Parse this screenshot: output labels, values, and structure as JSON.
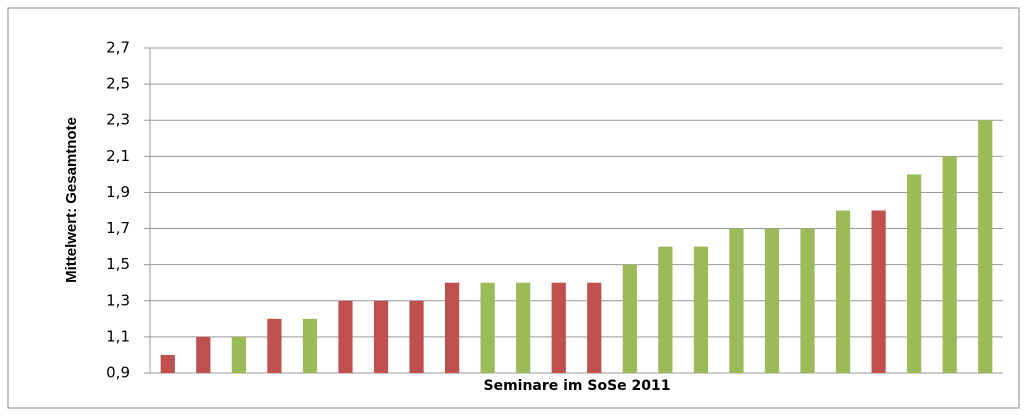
{
  "chart_data": {
    "type": "bar",
    "y_label": "Mittelwert: Gesamtnote",
    "x_label": "Seminare im SoSe 2011",
    "categories": [
      null,
      null,
      null,
      null,
      null,
      null,
      null,
      null,
      null,
      null,
      null,
      null,
      null,
      null,
      null,
      null,
      null,
      null,
      null,
      null,
      null,
      null,
      null,
      null
    ],
    "values": [
      1.0,
      1.1,
      1.1,
      1.2,
      1.2,
      1.3,
      1.3,
      1.3,
      1.4,
      1.4,
      1.4,
      1.4,
      1.4,
      1.5,
      1.6,
      1.6,
      1.7,
      1.7,
      1.7,
      1.8,
      1.8,
      2.0,
      2.1,
      2.3
    ],
    "colors": [
      "#c0504d",
      "#c0504d",
      "#9bbb59",
      "#c0504d",
      "#9bbb59",
      "#c0504d",
      "#c0504d",
      "#c0504d",
      "#c0504d",
      "#9bbb59",
      "#9bbb59",
      "#c0504d",
      "#c0504d",
      "#9bbb59",
      "#9bbb59",
      "#9bbb59",
      "#9bbb59",
      "#9bbb59",
      "#9bbb59",
      "#9bbb59",
      "#c0504d",
      "#9bbb59",
      "#9bbb59",
      "#9bbb59"
    ],
    "ylim": [
      0.9,
      2.7
    ],
    "yticks": [
      {
        "value": 0.9,
        "label": "0,9"
      },
      {
        "value": 1.1,
        "label": "1,1"
      },
      {
        "value": 1.3,
        "label": "1,3"
      },
      {
        "value": 1.5,
        "label": "1,5"
      },
      {
        "value": 1.7,
        "label": "1,7"
      },
      {
        "value": 1.9,
        "label": "1,9"
      },
      {
        "value": 2.1,
        "label": "2,1"
      },
      {
        "value": 2.3,
        "label": "2,3"
      },
      {
        "value": 2.5,
        "label": "2,5"
      },
      {
        "value": 2.7,
        "label": "2,7"
      }
    ],
    "grid": true
  }
}
